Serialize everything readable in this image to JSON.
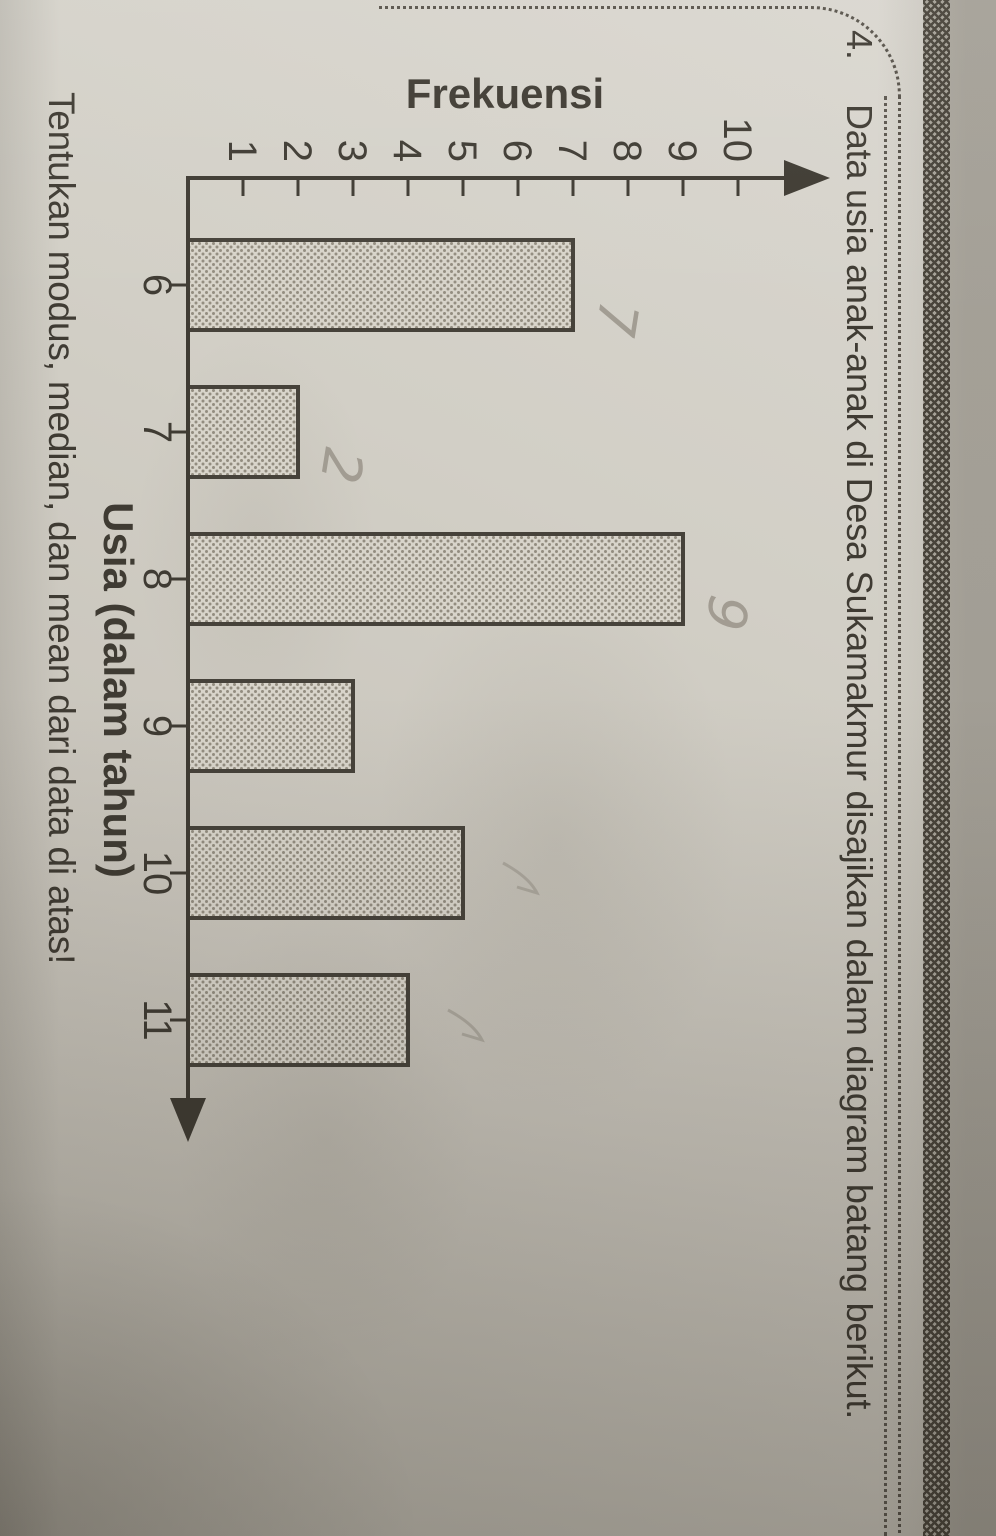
{
  "problem": {
    "number": "4.",
    "statement": "Data usia anak-anak di Desa Sukamakmur disajikan dalam diagram batang berikut.",
    "question": "Tentukan modus, median, dan mean dari data di atas!"
  },
  "chart_data": {
    "type": "bar",
    "categories": [
      "6",
      "7",
      "8",
      "9",
      "10",
      "11"
    ],
    "values": [
      7,
      2,
      9,
      3,
      5,
      4
    ],
    "xlabel": "Usia (dalam tahun)",
    "ylabel": "Frekuensi",
    "ylim": [
      0,
      10
    ],
    "yticks": [
      1,
      2,
      3,
      4,
      5,
      6,
      7,
      8,
      9,
      10
    ],
    "grid": false,
    "legend": false,
    "orientation": "vertical bars; photo of page is rotated 90 degrees clockwise"
  },
  "pencil_annotations": [
    {
      "text": "7",
      "near_age": "6"
    },
    {
      "text": "2",
      "near_age": "7"
    },
    {
      "text": "9",
      "near_age": "8"
    }
  ],
  "pencil_strokes": [
    {
      "near_age": "10"
    },
    {
      "near_age": "11"
    }
  ],
  "colors": {
    "paper": "#cfccc3",
    "ink": "#3f3b33",
    "bar_fill": "#d8d4ca",
    "bar_dot": "#938d80",
    "bar_border": "#46423a",
    "pencil": "#9a948a",
    "border_rule": "#57524a"
  }
}
